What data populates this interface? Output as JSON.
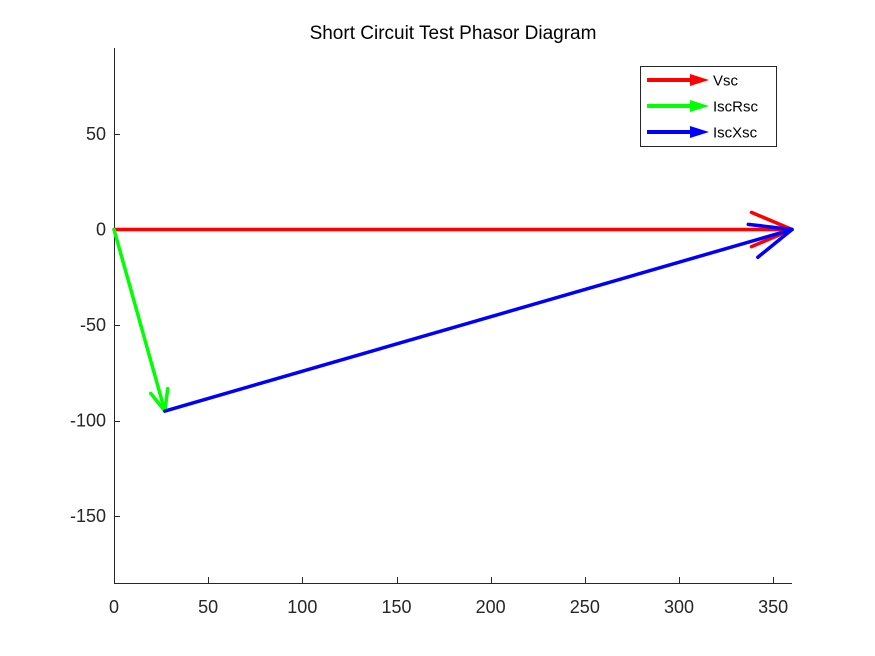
{
  "chart_data": {
    "type": "line",
    "title": "Short Circuit Test Phasor Diagram",
    "xlabel": "",
    "ylabel": "",
    "xlim": [
      0,
      360
    ],
    "ylim": [
      -185,
      95
    ],
    "xticks": [
      0,
      50,
      100,
      150,
      200,
      250,
      300,
      350
    ],
    "yticks": [
      50,
      0,
      -50,
      -100,
      -150
    ],
    "xtick_labels": [
      "0",
      "50",
      "100",
      "150",
      "200",
      "250",
      "300",
      "350"
    ],
    "ytick_labels": [
      "50",
      "0",
      "-50",
      "-100",
      "-150"
    ],
    "grid": false,
    "legend_position": "top-right",
    "series": [
      {
        "name": "Vsc",
        "color": "#ff0000",
        "start": [
          0,
          0
        ],
        "end": [
          360,
          0
        ]
      },
      {
        "name": "IscRsc",
        "color": "#00ff00",
        "start": [
          0,
          0
        ],
        "end": [
          27,
          -95
        ]
      },
      {
        "name": "IscXsc",
        "color": "#0000ff",
        "start": [
          27,
          -95
        ],
        "end": [
          360,
          0
        ]
      }
    ]
  }
}
